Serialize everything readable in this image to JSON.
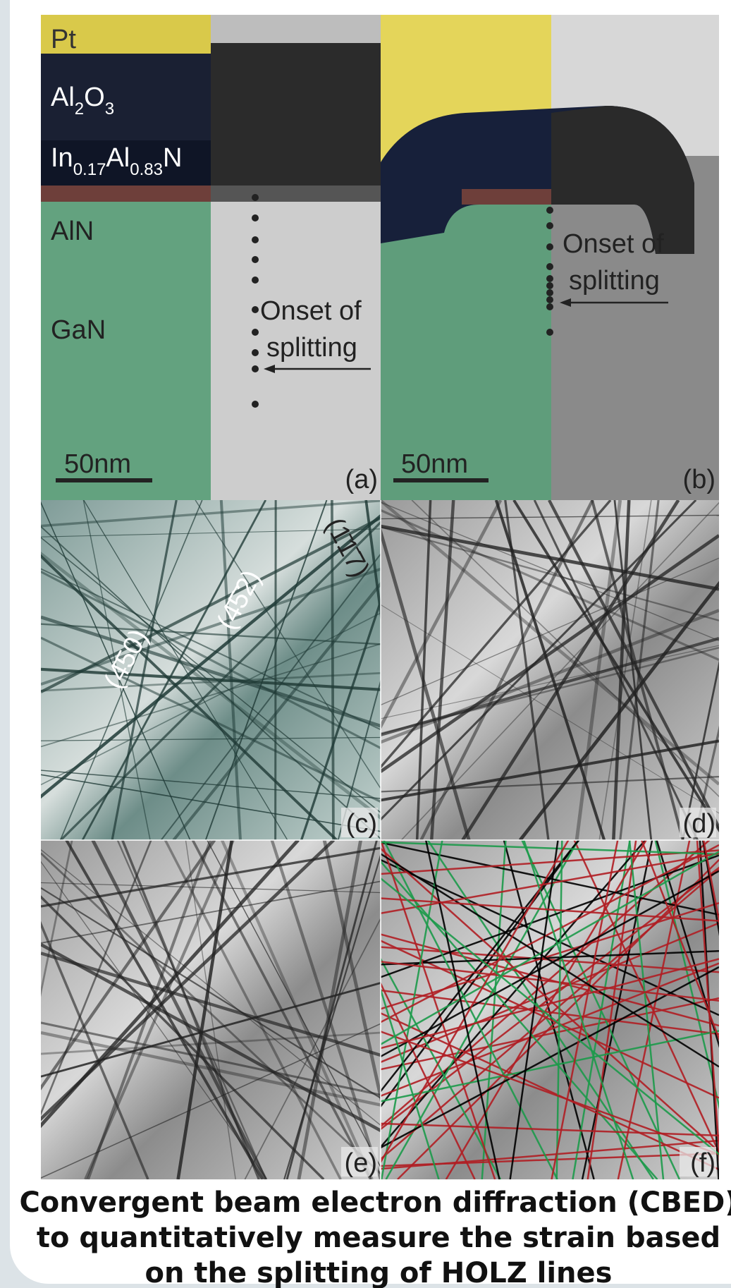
{
  "panels": {
    "a": {
      "layers": {
        "pt": "Pt",
        "al2o3": [
          "Al",
          "2",
          "O",
          "3"
        ],
        "inaln": [
          "In",
          "0.17",
          "Al",
          "0.83",
          "N"
        ],
        "aln": "AlN",
        "gan": "GaN"
      },
      "annotation": [
        "Onset of",
        "splitting"
      ],
      "scale_bar": "50nm",
      "label": "(a)"
    },
    "b": {
      "annotation": [
        "Onset of",
        "splitting"
      ],
      "scale_bar": "50nm",
      "label": "(b)"
    },
    "c": {
      "indices": [
        "(1̄1̄7)",
        "(4̄5̄2)",
        "(4̄50)"
      ],
      "label": "(c)"
    },
    "d": {
      "label": "(d)"
    },
    "e": {
      "label": "(e)"
    },
    "f": {
      "label": "(f)"
    }
  },
  "caption": [
    "Convergent beam electron diffraction (CBED)",
    "to quantitatively measure the strain based",
    "on the splitting of HOLZ lines"
  ]
}
